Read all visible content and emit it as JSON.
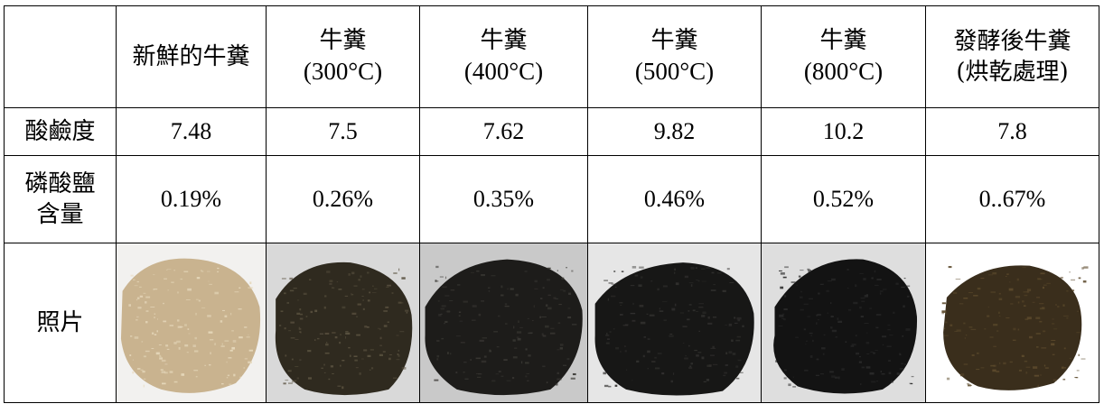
{
  "table": {
    "columns": [
      {
        "line1": "",
        "line2": ""
      },
      {
        "line1": "新鮮的牛糞",
        "line2": ""
      },
      {
        "line1": "牛糞",
        "line2": "(300°C)"
      },
      {
        "line1": "牛糞",
        "line2": "(400°C)"
      },
      {
        "line1": "牛糞",
        "line2": "(500°C)"
      },
      {
        "line1": "牛糞",
        "line2": "(800°C)"
      },
      {
        "line1": "發酵後牛糞",
        "line2": "(烘乾處理)"
      }
    ],
    "rows": [
      {
        "label_line1": "酸鹼度",
        "label_line2": "",
        "values": [
          "7.48",
          "7.5",
          "7.62",
          "9.82",
          "10.2",
          "7.8"
        ]
      },
      {
        "label_line1": "磷酸鹽",
        "label_line2": "含量",
        "values": [
          "0.19%",
          "0.26%",
          "0.35%",
          "0.46%",
          "0.52%",
          "0..67%"
        ]
      }
    ],
    "photo_row_label": "照片",
    "photos": [
      {
        "icon": "fresh-manure-photo",
        "base_color": "#c9b38f",
        "fleck_color": "#e6d8bb"
      },
      {
        "icon": "manure-300c-photo",
        "base_color": "#2f2a1f",
        "fleck_color": "#5a5240"
      },
      {
        "icon": "manure-400c-photo",
        "base_color": "#1d1c1a",
        "fleck_color": "#3a3834"
      },
      {
        "icon": "manure-500c-photo",
        "base_color": "#171716",
        "fleck_color": "#333230"
      },
      {
        "icon": "manure-800c-photo",
        "base_color": "#131313",
        "fleck_color": "#2b2b2b"
      },
      {
        "icon": "fermented-manure-photo",
        "base_color": "#3a2e1c",
        "fleck_color": "#5c4a2c"
      }
    ]
  }
}
